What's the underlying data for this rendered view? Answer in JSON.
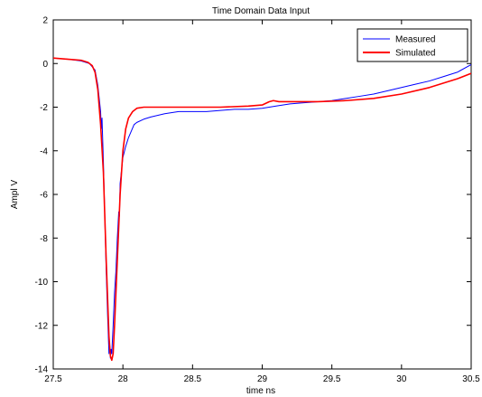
{
  "chart_data": {
    "type": "line",
    "title": "Time Domain Data Input",
    "xlabel": "time ns",
    "ylabel": "Ampl  V",
    "xlim": [
      27.5,
      30.5
    ],
    "ylim": [
      -14,
      2
    ],
    "xticks": [
      27.5,
      28,
      28.5,
      29,
      29.5,
      30,
      30.5
    ],
    "xtick_labels": [
      "27.5",
      "28",
      "28.5",
      "29",
      "29.5",
      "30",
      "30.5"
    ],
    "yticks": [
      -14,
      -12,
      -10,
      -8,
      -6,
      -4,
      -2,
      0,
      2
    ],
    "ytick_labels": [
      "-14",
      "-12",
      "-10",
      "-8",
      "-6",
      "-4",
      "-2",
      "0",
      "2"
    ],
    "grid": false,
    "legend_position": "top-right",
    "series": [
      {
        "name": "Measured",
        "color": "#0000ff",
        "points": [
          [
            27.5,
            0.25
          ],
          [
            27.6,
            0.2
          ],
          [
            27.7,
            0.12
          ],
          [
            27.76,
            0.0
          ],
          [
            27.8,
            -0.3
          ],
          [
            27.82,
            -1.0
          ],
          [
            27.84,
            -2.2
          ],
          [
            27.845,
            -3.0
          ],
          [
            27.85,
            -2.5
          ],
          [
            27.86,
            -4.5
          ],
          [
            27.87,
            -7.0
          ],
          [
            27.88,
            -9.5
          ],
          [
            27.89,
            -11.5
          ],
          [
            27.9,
            -13.3
          ],
          [
            27.905,
            -12.9
          ],
          [
            27.91,
            -13.5
          ],
          [
            27.915,
            -13.1
          ],
          [
            27.92,
            -13.3
          ],
          [
            27.93,
            -12.0
          ],
          [
            27.94,
            -10.5
          ],
          [
            27.95,
            -9.5
          ],
          [
            27.96,
            -8.0
          ],
          [
            27.97,
            -6.8
          ],
          [
            27.975,
            -7.0
          ],
          [
            27.98,
            -5.5
          ],
          [
            28.0,
            -4.3
          ],
          [
            28.02,
            -3.8
          ],
          [
            28.04,
            -3.4
          ],
          [
            28.06,
            -3.1
          ],
          [
            28.08,
            -2.8
          ],
          [
            28.1,
            -2.7
          ],
          [
            28.15,
            -2.55
          ],
          [
            28.2,
            -2.45
          ],
          [
            28.3,
            -2.3
          ],
          [
            28.4,
            -2.2
          ],
          [
            28.5,
            -2.2
          ],
          [
            28.6,
            -2.2
          ],
          [
            28.7,
            -2.15
          ],
          [
            28.8,
            -2.1
          ],
          [
            28.9,
            -2.1
          ],
          [
            29.0,
            -2.05
          ],
          [
            29.1,
            -1.95
          ],
          [
            29.2,
            -1.85
          ],
          [
            29.3,
            -1.8
          ],
          [
            29.4,
            -1.75
          ],
          [
            29.5,
            -1.7
          ],
          [
            29.6,
            -1.6
          ],
          [
            29.7,
            -1.5
          ],
          [
            29.8,
            -1.4
          ],
          [
            29.9,
            -1.25
          ],
          [
            30.0,
            -1.1
          ],
          [
            30.1,
            -0.95
          ],
          [
            30.2,
            -0.8
          ],
          [
            30.3,
            -0.6
          ],
          [
            30.4,
            -0.4
          ],
          [
            30.5,
            -0.05
          ]
        ]
      },
      {
        "name": "Simulated",
        "color": "#ff0000",
        "points": [
          [
            27.5,
            0.25
          ],
          [
            27.6,
            0.2
          ],
          [
            27.7,
            0.15
          ],
          [
            27.75,
            0.05
          ],
          [
            27.78,
            -0.1
          ],
          [
            27.8,
            -0.4
          ],
          [
            27.82,
            -1.2
          ],
          [
            27.84,
            -2.8
          ],
          [
            27.86,
            -5.0
          ],
          [
            27.88,
            -9.0
          ],
          [
            27.9,
            -12.5
          ],
          [
            27.91,
            -13.4
          ],
          [
            27.92,
            -13.6
          ],
          [
            27.93,
            -13.3
          ],
          [
            27.94,
            -12.0
          ],
          [
            27.96,
            -9.0
          ],
          [
            27.98,
            -6.0
          ],
          [
            28.0,
            -4.0
          ],
          [
            28.02,
            -3.0
          ],
          [
            28.04,
            -2.5
          ],
          [
            28.07,
            -2.2
          ],
          [
            28.1,
            -2.05
          ],
          [
            28.15,
            -2.0
          ],
          [
            28.3,
            -2.0
          ],
          [
            28.5,
            -2.0
          ],
          [
            28.7,
            -2.0
          ],
          [
            28.9,
            -1.95
          ],
          [
            29.0,
            -1.9
          ],
          [
            29.05,
            -1.75
          ],
          [
            29.08,
            -1.7
          ],
          [
            29.12,
            -1.75
          ],
          [
            29.2,
            -1.75
          ],
          [
            29.4,
            -1.75
          ],
          [
            29.6,
            -1.7
          ],
          [
            29.8,
            -1.6
          ],
          [
            30.0,
            -1.4
          ],
          [
            30.2,
            -1.1
          ],
          [
            30.4,
            -0.7
          ],
          [
            30.5,
            -0.45
          ]
        ]
      }
    ]
  }
}
